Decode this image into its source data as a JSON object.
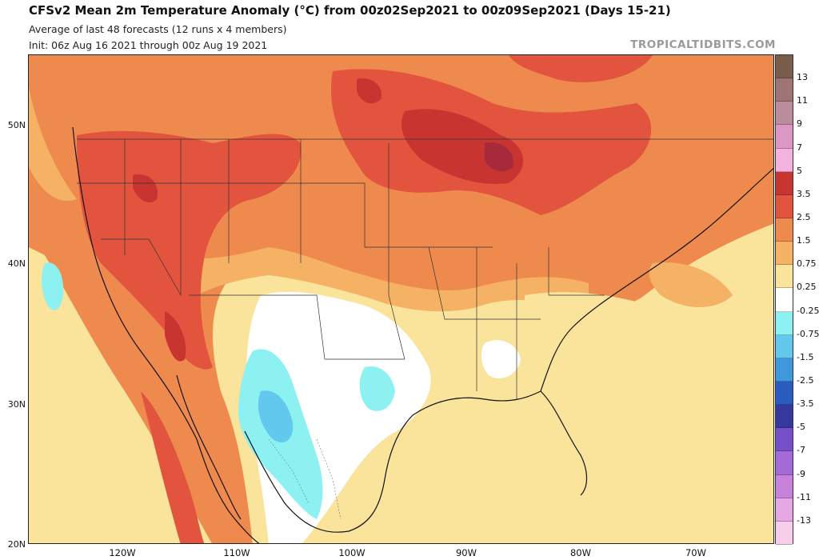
{
  "header": {
    "title": "CFSv2 Mean 2m Temperature Anomaly (°C) from 00z02Sep2021 to 00z09Sep2021 (Days 15-21)",
    "subtitle": "Average of last 48 forecasts (12 runs x 4 members)",
    "init": "Init: 06z Aug 16 2021 through 00z Aug 19 2021",
    "brand": "TROPICALTIDBITS.COM"
  },
  "axes": {
    "lat_labels": [
      "50N",
      "40N",
      "30N",
      "20N"
    ],
    "lon_labels": [
      "120W",
      "110W",
      "100W",
      "90W",
      "80W",
      "70W"
    ]
  },
  "colorbar": {
    "labels": [
      "13",
      "11",
      "9",
      "7",
      "5",
      "3.5",
      "2.5",
      "1.5",
      "0.75",
      "0.25",
      "-0.25",
      "-0.75",
      "-1.5",
      "-2.5",
      "-3.5",
      "-5",
      "-7",
      "-9",
      "-11",
      "-13"
    ],
    "colors": [
      "#7a5c4c",
      "#9e7474",
      "#bb8c9b",
      "#dd97c5",
      "#f4b2df",
      "#c83530",
      "#e2543d",
      "#ef8a4e",
      "#f5b265",
      "#fae39a",
      "#ffffff",
      "#8ef1f1",
      "#63c8ee",
      "#3f97dc",
      "#2a5cc0",
      "#3737a0",
      "#7550c8",
      "#a46ad8",
      "#c982dc",
      "#e5a8e3",
      "#f6cee9"
    ]
  },
  "legend_colors": {
    "weak_cool": "#8ef1f1",
    "mod_cool": "#63c8ee",
    "neutral": "#ffffff",
    "warm_025": "#fae39a",
    "warm_075": "#f5b265",
    "warm_15": "#ef8a4e",
    "warm_25": "#e2543d",
    "warm_35": "#c83530",
    "warm_5": "#a62a3c"
  }
}
